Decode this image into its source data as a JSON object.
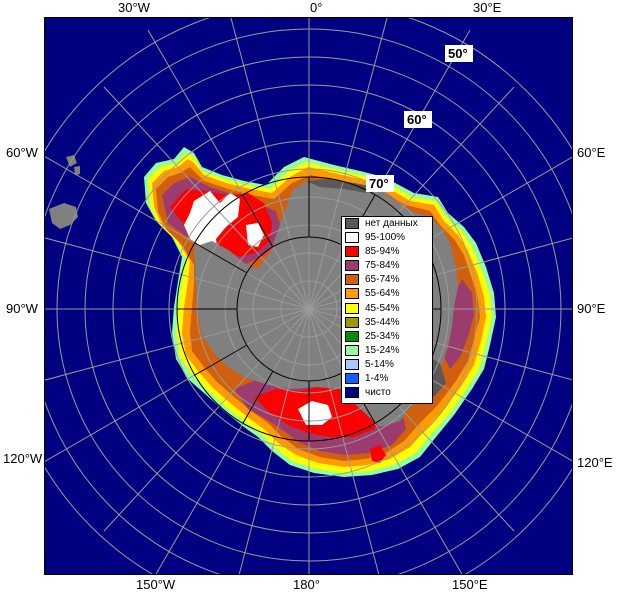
{
  "lon_labels": {
    "top": [
      "30°W",
      "0°",
      "30°E"
    ],
    "left": [
      "60°W",
      "90°W",
      "120°W"
    ],
    "right": [
      "60°E",
      "90°E",
      "120°E"
    ],
    "bottom": [
      "150°W",
      "180°",
      "150°E"
    ]
  },
  "lat_labels": [
    "50°",
    "60°",
    "70°"
  ],
  "legend": [
    {
      "label": "нет данных",
      "color": "#595959"
    },
    {
      "label": "95-100%",
      "color": "#ffffff"
    },
    {
      "label": "85-94%",
      "color": "#ff0000"
    },
    {
      "label": "75-84%",
      "color": "#9c3c6e"
    },
    {
      "label": "65-74%",
      "color": "#d06010"
    },
    {
      "label": "55-64%",
      "color": "#ff9a00"
    },
    {
      "label": "45-54%",
      "color": "#ffff00"
    },
    {
      "label": "35-44%",
      "color": "#9c9c00"
    },
    {
      "label": "25-34%",
      "color": "#008c00"
    },
    {
      "label": "15-24%",
      "color": "#90ffa0"
    },
    {
      "label": "5-14%",
      "color": "#a8c8ff"
    },
    {
      "label": "1-4%",
      "color": "#1060ff"
    },
    {
      "label": "чисто",
      "color": "#000080"
    }
  ],
  "colors": {
    "ocean": "#000080",
    "land": "#808080",
    "nodata": "#595959"
  }
}
